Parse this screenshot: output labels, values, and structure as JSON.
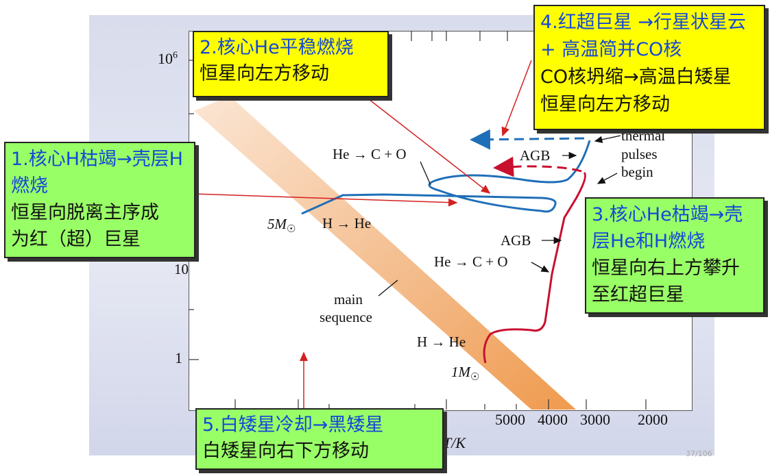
{
  "y_ticks": [
    "10",
    "6",
    "1"
  ],
  "x_ticks": [
    "5000",
    "4000",
    "3000",
    "2000"
  ],
  "x_axis_label": "T/K",
  "track_labels": {
    "he_c_o_upper": "He → C + O",
    "agb_upper": "AGB",
    "thermal": "thermal",
    "pulses": "pulses",
    "begin": "begin",
    "five_msun": "5M",
    "h_he_upper": "H → He",
    "agb_lower": "AGB",
    "he_c_o_lower": "He → C + O",
    "main": "main",
    "sequence": "sequence",
    "h_he_lower": "H → He",
    "one_msun": "1M",
    "sun": "☉",
    "ten_fragment": "10"
  },
  "boxes": {
    "box1": {
      "title": "1.核心H枯竭→壳层H燃烧",
      "lines": [
        "恒星向脱离主序成",
        "为红（超）巨星"
      ]
    },
    "box2": {
      "title": "2.核心He平稳燃烧",
      "lines": [
        "恒星向左方移动"
      ]
    },
    "box3": {
      "title": "3.核心He枯竭→壳层He和H燃烧",
      "lines": [
        "恒星向右上方攀升",
        "至红超巨星"
      ]
    },
    "box4": {
      "title": "4.红超巨星 →行星状星云 + 高温简并CO核",
      "lines": [
        "CO核坍缩→高温白矮星",
        "恒星向左方移动"
      ]
    },
    "box5": {
      "title": "5.白矮星冷却→黑矮星",
      "lines": [
        "白矮星向右下方移动"
      ]
    }
  },
  "page_number": "37/106",
  "colors": {
    "blue_track": "#1f6fb8",
    "red_track": "#c8102e",
    "main_sequence": "#f0a060",
    "yellow_box": "#ffff00",
    "green_box": "#99ff66",
    "title_blue": "#1448d8"
  }
}
